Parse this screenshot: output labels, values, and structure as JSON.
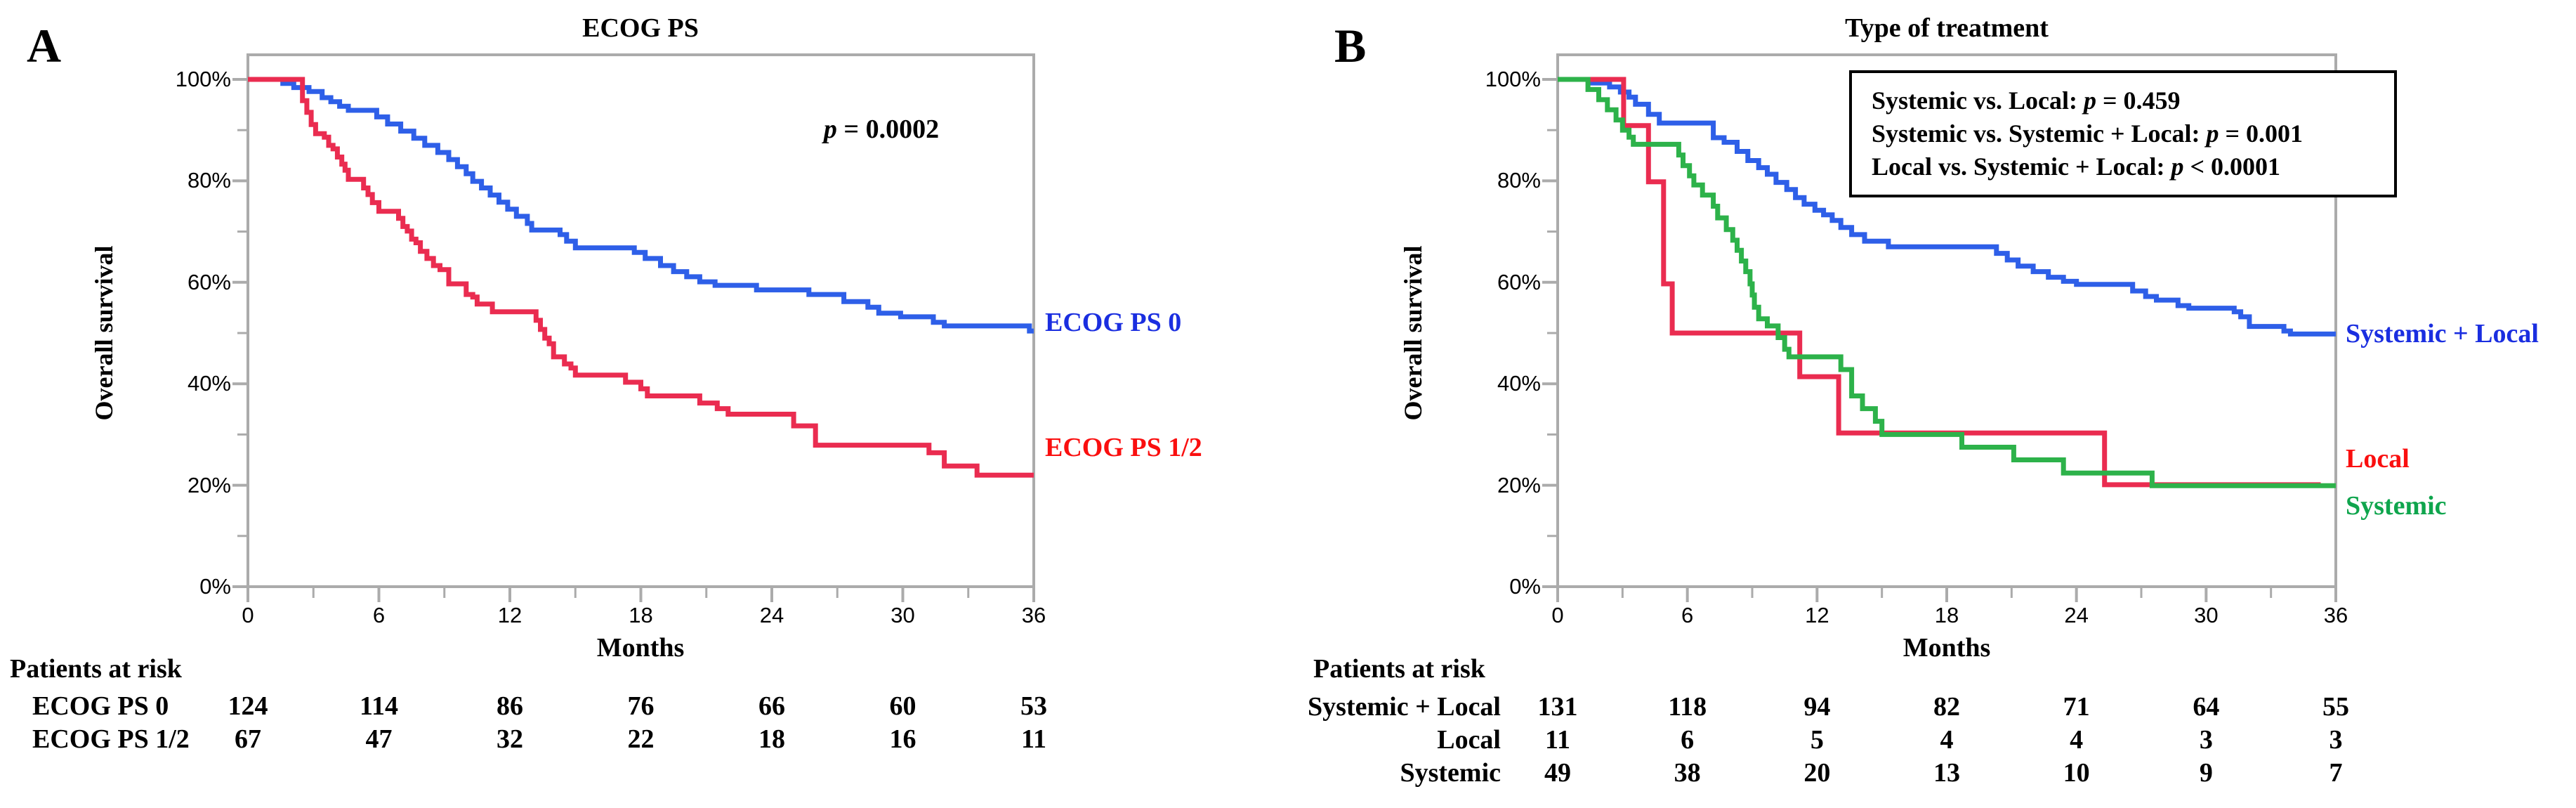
{
  "panels": [
    {
      "panel_label": "A",
      "title": "ECOG PS",
      "p_value": {
        "p": "p",
        "rest": " = 0.0002"
      },
      "y_axis_label": "Overall survival",
      "x_axis_label": "Months",
      "y_ticks": [
        "100%",
        "80%",
        "60%",
        "40%",
        "20%",
        "0%"
      ],
      "x_ticks": [
        "0",
        "6",
        "12",
        "18",
        "24",
        "30",
        "36"
      ],
      "curve_labels": [
        {
          "text": "ECOG PS 0"
        },
        {
          "text": "ECOG PS 1/2"
        }
      ],
      "risk_table": {
        "header": "Patients at risk",
        "rows": [
          {
            "label": "ECOG PS 0",
            "values": [
              "124",
              "114",
              "86",
              "76",
              "66",
              "60",
              "53"
            ]
          },
          {
            "label": "ECOG PS 1/2",
            "values": [
              "67",
              "47",
              "32",
              "22",
              "18",
              "16",
              "11"
            ]
          }
        ]
      }
    },
    {
      "panel_label": "B",
      "title": "Type of treatment",
      "stats_box": {
        "lines": [
          {
            "prefix": "Systemic vs. Local: ",
            "p": "p",
            "rest": " = 0.459"
          },
          {
            "prefix": "Systemic vs. Systemic + Local: ",
            "p": "p",
            "rest": " = 0.001"
          },
          {
            "prefix": "Local vs. Systemic + Local: ",
            "p": "p",
            "rest": " < 0.0001"
          }
        ]
      },
      "y_axis_label": "Overall survival",
      "x_axis_label": "Months",
      "y_ticks": [
        "100%",
        "80%",
        "60%",
        "40%",
        "20%",
        "0%"
      ],
      "x_ticks": [
        "0",
        "6",
        "12",
        "18",
        "24",
        "30",
        "36"
      ],
      "curve_labels": [
        {
          "text": "Systemic + Local"
        },
        {
          "text": "Local"
        },
        {
          "text": "Systemic"
        }
      ],
      "risk_table": {
        "header": "Patients at risk",
        "rows": [
          {
            "label": "Systemic + Local",
            "values": [
              "131",
              "118",
              "94",
              "82",
              "71",
              "64",
              "55"
            ]
          },
          {
            "label": "Local",
            "values": [
              "11",
              "6",
              "5",
              "4",
              "4",
              "3",
              "3"
            ]
          },
          {
            "label": "Systemic",
            "values": [
              "49",
              "38",
              "20",
              "13",
              "10",
              "9",
              "7"
            ]
          }
        ]
      }
    }
  ],
  "colors": {
    "frame_gray": "#ababab",
    "black": "#000000",
    "blue_curve": "#2e5fe8",
    "blue_label": "#1a2ee0",
    "red_curve": "#ea2c50",
    "red_label": "#fa0f0f",
    "green_curve": "#2db24a",
    "green_label": "#0fa54d"
  },
  "chart_data": [
    {
      "type": "line",
      "subtype": "kaplan-meier-step",
      "title": "ECOG PS",
      "xlabel": "Months",
      "ylabel": "Overall survival",
      "xlim": [
        0,
        36
      ],
      "ylim": [
        0,
        100
      ],
      "x_major_ticks": [
        0,
        6,
        12,
        18,
        24,
        30,
        36
      ],
      "x_minor_step": 3,
      "y_major_ticks": [
        0,
        20,
        40,
        60,
        80,
        100
      ],
      "y_minor_step": 10,
      "grid": false,
      "annotation": "p = 0.0002",
      "legend_position": "right-of-plot",
      "series": [
        {
          "name": "ECOG PS 0",
          "color": "#2e5fe8",
          "label_color": "#1a2ee0",
          "steps": [
            [
              0,
              100
            ],
            [
              1.6,
              99.2
            ],
            [
              2.1,
              98.4
            ],
            [
              2.8,
              97.6
            ],
            [
              3.4,
              96.4
            ],
            [
              3.8,
              95.6
            ],
            [
              4.2,
              94.7
            ],
            [
              4.6,
              93.9
            ],
            [
              5.9,
              92.6
            ],
            [
              6.4,
              91.2
            ],
            [
              7.0,
              89.8
            ],
            [
              7.6,
              88.4
            ],
            [
              8.1,
              87.0
            ],
            [
              8.7,
              85.6
            ],
            [
              9.2,
              84.2
            ],
            [
              9.6,
              82.8
            ],
            [
              10.0,
              81.4
            ],
            [
              10.3,
              79.9
            ],
            [
              10.7,
              78.6
            ],
            [
              11.1,
              77.2
            ],
            [
              11.5,
              75.8
            ],
            [
              11.9,
              74.4
            ],
            [
              12.3,
              73.0
            ],
            [
              12.8,
              71.6
            ],
            [
              13.0,
              70.3
            ],
            [
              14.3,
              69.4
            ],
            [
              14.6,
              68.1
            ],
            [
              15.0,
              66.8
            ],
            [
              17.7,
              65.9
            ],
            [
              18.2,
              64.7
            ],
            [
              18.9,
              63.3
            ],
            [
              19.5,
              62.1
            ],
            [
              20.1,
              61.1
            ],
            [
              20.7,
              60.1
            ],
            [
              21.4,
              59.4
            ],
            [
              23.3,
              58.5
            ],
            [
              25.7,
              57.6
            ],
            [
              27.3,
              56.2
            ],
            [
              28.4,
              55.1
            ],
            [
              28.9,
              53.9
            ],
            [
              29.9,
              53.2
            ],
            [
              31.4,
              52.1
            ],
            [
              31.9,
              51.4
            ],
            [
              35.8,
              50.4
            ],
            [
              36,
              50.4
            ]
          ]
        },
        {
          "name": "ECOG PS 1/2",
          "color": "#ea2c50",
          "label_color": "#fa0f0f",
          "steps": [
            [
              0,
              100
            ],
            [
              2.5,
              95.8
            ],
            [
              2.7,
              93.5
            ],
            [
              2.9,
              91.1
            ],
            [
              3.1,
              89.3
            ],
            [
              3.5,
              88.6
            ],
            [
              3.7,
              87.0
            ],
            [
              3.9,
              86.3
            ],
            [
              4.1,
              84.7
            ],
            [
              4.3,
              83.3
            ],
            [
              4.45,
              82.1
            ],
            [
              4.6,
              80.3
            ],
            [
              5.3,
              78.6
            ],
            [
              5.5,
              77.3
            ],
            [
              5.7,
              75.7
            ],
            [
              6.0,
              74.0
            ],
            [
              6.9,
              72.6
            ],
            [
              7.1,
              71.0
            ],
            [
              7.3,
              70.1
            ],
            [
              7.5,
              68.5
            ],
            [
              7.7,
              67.8
            ],
            [
              7.9,
              66.1
            ],
            [
              8.2,
              64.7
            ],
            [
              8.5,
              63.3
            ],
            [
              8.8,
              62.5
            ],
            [
              9.2,
              59.7
            ],
            [
              10.0,
              57.6
            ],
            [
              10.3,
              57.1
            ],
            [
              10.5,
              55.7
            ],
            [
              11.2,
              54.2
            ],
            [
              13.2,
              52.5
            ],
            [
              13.4,
              50.7
            ],
            [
              13.6,
              49.0
            ],
            [
              13.8,
              47.9
            ],
            [
              14.0,
              45.3
            ],
            [
              14.5,
              43.9
            ],
            [
              14.8,
              43.1
            ],
            [
              15.0,
              41.7
            ],
            [
              17.3,
              40.3
            ],
            [
              18.0,
              39.0
            ],
            [
              18.3,
              37.6
            ],
            [
              20.7,
              36.2
            ],
            [
              21.5,
              35.1
            ],
            [
              22.0,
              34.0
            ],
            [
              25.0,
              31.7
            ],
            [
              26.0,
              27.9
            ],
            [
              31.2,
              26.4
            ],
            [
              31.9,
              23.8
            ],
            [
              33.4,
              22.0
            ],
            [
              36,
              22.0
            ]
          ]
        }
      ],
      "patients_at_risk": {
        "months": [
          0,
          6,
          12,
          18,
          24,
          30,
          36
        ],
        "ECOG PS 0": [
          124,
          114,
          86,
          76,
          66,
          60,
          53
        ],
        "ECOG PS 1/2": [
          67,
          47,
          32,
          22,
          18,
          16,
          11
        ]
      }
    },
    {
      "type": "line",
      "subtype": "kaplan-meier-step",
      "title": "Type of treatment",
      "xlabel": "Months",
      "ylabel": "Overall survival",
      "xlim": [
        0,
        36
      ],
      "ylim": [
        0,
        100
      ],
      "x_major_ticks": [
        0,
        6,
        12,
        18,
        24,
        30,
        36
      ],
      "x_minor_step": 3,
      "y_major_ticks": [
        0,
        20,
        40,
        60,
        80,
        100
      ],
      "y_minor_step": 10,
      "grid": false,
      "annotations": [
        "Systemic vs. Local: p = 0.459",
        "Systemic vs. Systemic + Local: p = 0.001",
        "Local vs. Systemic + Local: p < 0.0001"
      ],
      "legend_position": "right-of-plot",
      "series": [
        {
          "name": "Systemic + Local",
          "color": "#2e5fe8",
          "label_color": "#1a2ee0",
          "steps": [
            [
              0,
              100
            ],
            [
              1.5,
              99.3
            ],
            [
              2.4,
              98.5
            ],
            [
              2.9,
              97.5
            ],
            [
              3.3,
              96.5
            ],
            [
              3.6,
              95.1
            ],
            [
              4.2,
              93.1
            ],
            [
              4.7,
              91.4
            ],
            [
              7.2,
              88.5
            ],
            [
              7.7,
              87.6
            ],
            [
              8.3,
              85.8
            ],
            [
              8.8,
              84.0
            ],
            [
              9.3,
              82.6
            ],
            [
              9.7,
              81.3
            ],
            [
              10.1,
              79.7
            ],
            [
              10.6,
              78.3
            ],
            [
              11.0,
              76.7
            ],
            [
              11.4,
              75.4
            ],
            [
              11.9,
              74.2
            ],
            [
              12.3,
              73.3
            ],
            [
              12.7,
              72.2
            ],
            [
              13.1,
              70.8
            ],
            [
              13.6,
              69.4
            ],
            [
              14.2,
              68.1
            ],
            [
              15.3,
              67.0
            ],
            [
              20.3,
              65.7
            ],
            [
              20.8,
              64.4
            ],
            [
              21.3,
              63.2
            ],
            [
              22.0,
              62.1
            ],
            [
              22.7,
              61.0
            ],
            [
              23.4,
              60.2
            ],
            [
              24.0,
              59.6
            ],
            [
              26.6,
              58.3
            ],
            [
              27.2,
              57.2
            ],
            [
              27.7,
              56.5
            ],
            [
              28.7,
              55.4
            ],
            [
              29.2,
              54.9
            ],
            [
              31.3,
              54.2
            ],
            [
              31.6,
              53.2
            ],
            [
              32.0,
              51.3
            ],
            [
              33.6,
              50.4
            ],
            [
              33.9,
              49.8
            ],
            [
              36,
              49.8
            ]
          ]
        },
        {
          "name": "Local",
          "color": "#ea2c50",
          "label_color": "#fa0f0f",
          "steps": [
            [
              0,
              100
            ],
            [
              3.05,
              90.9
            ],
            [
              4.2,
              79.8
            ],
            [
              4.9,
              59.7
            ],
            [
              5.3,
              50.0
            ],
            [
              11.2,
              41.4
            ],
            [
              13.0,
              30.3
            ],
            [
              25.3,
              20.1
            ],
            [
              35.3,
              20.1
            ]
          ]
        },
        {
          "name": "Systemic",
          "color": "#2db24a",
          "label_color": "#0fa54d",
          "steps": [
            [
              0,
              100
            ],
            [
              1.4,
              98.0
            ],
            [
              1.9,
              96.0
            ],
            [
              2.3,
              94.0
            ],
            [
              2.7,
              92.0
            ],
            [
              3.0,
              90.0
            ],
            [
              3.3,
              88.6
            ],
            [
              3.5,
              87.2
            ],
            [
              5.6,
              85.1
            ],
            [
              5.8,
              83.0
            ],
            [
              6.1,
              81.0
            ],
            [
              6.3,
              79.2
            ],
            [
              6.7,
              77.2
            ],
            [
              7.2,
              75.0
            ],
            [
              7.4,
              72.7
            ],
            [
              7.8,
              70.4
            ],
            [
              8.1,
              68.3
            ],
            [
              8.3,
              66.3
            ],
            [
              8.5,
              64.2
            ],
            [
              8.7,
              62.1
            ],
            [
              8.9,
              59.7
            ],
            [
              9.0,
              57.5
            ],
            [
              9.1,
              55.1
            ],
            [
              9.3,
              52.8
            ],
            [
              9.7,
              51.4
            ],
            [
              10.2,
              49.1
            ],
            [
              10.5,
              46.8
            ],
            [
              10.7,
              45.3
            ],
            [
              13.1,
              42.8
            ],
            [
              13.6,
              37.6
            ],
            [
              14.1,
              35.1
            ],
            [
              14.7,
              32.6
            ],
            [
              15.0,
              30.0
            ],
            [
              18.7,
              27.5
            ],
            [
              21.1,
              25.0
            ],
            [
              23.4,
              22.4
            ],
            [
              27.5,
              19.9
            ],
            [
              36,
              19.9
            ]
          ]
        }
      ],
      "patients_at_risk": {
        "months": [
          0,
          6,
          12,
          18,
          24,
          30,
          36
        ],
        "Systemic + Local": [
          131,
          118,
          94,
          82,
          71,
          64,
          55
        ],
        "Local": [
          11,
          6,
          5,
          4,
          4,
          3,
          3
        ],
        "Systemic": [
          49,
          38,
          20,
          13,
          10,
          9,
          7
        ]
      }
    }
  ]
}
